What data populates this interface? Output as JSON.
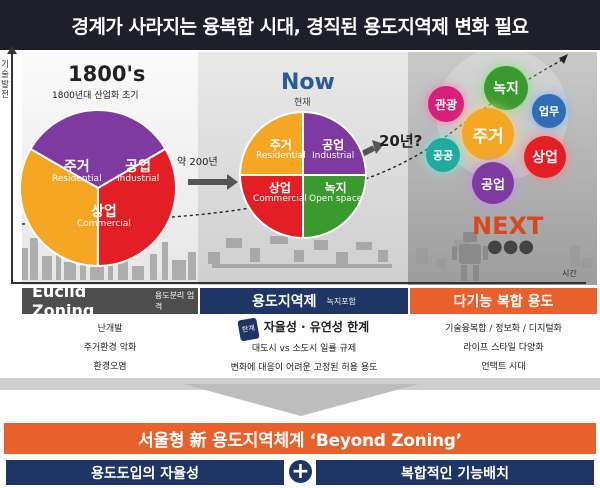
{
  "title": "경계가 사라지는 융복합 시대, 경직된 용도지역제 변화 필요",
  "axis": {
    "vertical": "기술발전",
    "horizontal": "시간"
  },
  "eras": {
    "e1800": {
      "title": "1800's",
      "subtitle": "1800년대 산업화 초기"
    },
    "now": {
      "title": "Now",
      "subtitle": "현재"
    },
    "next": {
      "title": "NEXT",
      "dots": "●●●"
    }
  },
  "transitions": {
    "years_200": "약 200년",
    "years_20": "20년?"
  },
  "pie_1800": [
    {
      "ko": "주거",
      "en": "Residential",
      "share": 0.333,
      "color": "#f5a623"
    },
    {
      "ko": "공업",
      "en": "Industrial",
      "share": 0.333,
      "color": "#7e3aa0"
    },
    {
      "ko": "상업",
      "en": "Commercial",
      "share": 0.334,
      "color": "#e31e25"
    }
  ],
  "pie_now": [
    {
      "ko": "주거",
      "en": "Residential",
      "share": 0.25,
      "color": "#f5a623"
    },
    {
      "ko": "공업",
      "en": "Industrial",
      "share": 0.25,
      "color": "#7e3aa0"
    },
    {
      "ko": "녹지",
      "en": "Open space",
      "share": 0.25,
      "color": "#3a9a2e"
    },
    {
      "ko": "상업",
      "en": "Commercial",
      "share": 0.25,
      "color": "#e31e25"
    }
  ],
  "next_bubbles": {
    "tourism": "관광",
    "green": "녹지",
    "business": "업무",
    "residential": "주거",
    "public": "공공",
    "commercial": "상업",
    "industrial": "공업"
  },
  "bands": {
    "euclid": {
      "title": "Euclid Zoning",
      "sub": "용도분리 엄격"
    },
    "zoning": {
      "title": "용도지역제",
      "sub": "녹지포함"
    },
    "multi": {
      "title": "다기능 복합 용도"
    }
  },
  "col1": [
    "난개발",
    "주거환경 악화",
    "환경오염"
  ],
  "col2": {
    "badge": "한계",
    "headline": "자율성 · 유연성 한계",
    "lines": [
      "대도시 vs 소도시 일률 규제",
      "변화에 대응이 어려운 고정된 허용 용도"
    ]
  },
  "col3": [
    "기술융복합 / 정보화 / 디지털화",
    "라이프 스타일 다양화",
    "언택트 시대"
  ],
  "beyond": "서울형 新 용도지역체계 ‘Beyond Zoning’",
  "footer": {
    "left": "용도도입의 자율성",
    "plus": "+",
    "right": "복합적인 기능배치"
  }
}
